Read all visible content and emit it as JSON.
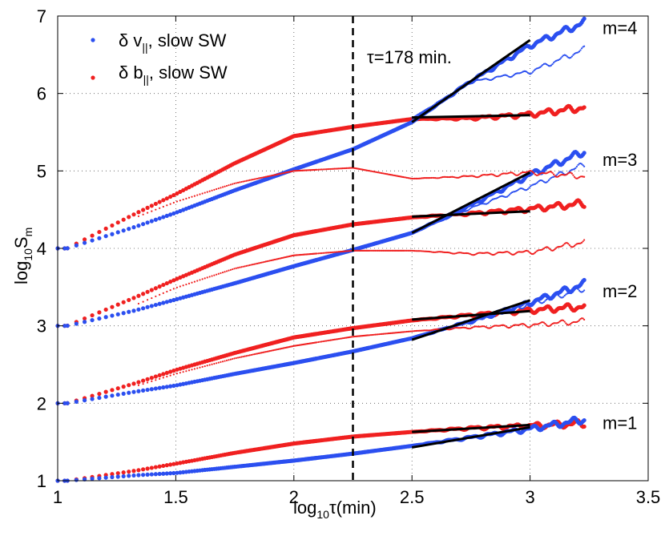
{
  "chart_data": {
    "type": "scatter",
    "title": "",
    "xlabel": {
      "pre": "log",
      "sub": "10",
      "post": "τ(min)"
    },
    "ylabel": {
      "pre": "log",
      "sub": "10",
      "mid": "S",
      "sub2": "m"
    },
    "xlim": [
      1,
      3.5
    ],
    "ylim": [
      1,
      7
    ],
    "xticks": [
      1,
      1.5,
      2,
      2.5,
      3,
      3.5
    ],
    "xtick_labels": [
      "1",
      "1.5",
      "2",
      "2.5",
      "3",
      "3.5"
    ],
    "yticks": [
      1,
      2,
      3,
      4,
      5,
      6,
      7
    ],
    "ytick_labels": [
      "1",
      "2",
      "3",
      "4",
      "5",
      "6",
      "7"
    ],
    "grid": "dotted",
    "legend": [
      {
        "name": "δ v||, slow SW",
        "label_pre": "δ v",
        "label_sub": "||",
        "label_post": ", slow SW",
        "color": "#2b4ff0"
      },
      {
        "name": "δ b||, slow SW",
        "label_pre": "δ b",
        "label_sub": "||",
        "label_post": ", slow SW",
        "color": "#f02020"
      }
    ],
    "legend_position": "top-left",
    "vline": {
      "x": 2.25,
      "style": "dashed",
      "label": "τ=178 min."
    },
    "x_last": 3.23,
    "orders": [
      {
        "m": 1,
        "label": "m=1",
        "label_y": 1.75,
        "v_anchor": [
          [
            1.04,
            1.0
          ],
          [
            1.33,
            1.07
          ],
          [
            1.5,
            1.1
          ],
          [
            1.75,
            1.18
          ],
          [
            2.0,
            1.26
          ],
          [
            2.25,
            1.35
          ],
          [
            2.5,
            1.45
          ],
          [
            2.75,
            1.56
          ],
          [
            3.0,
            1.67
          ],
          [
            3.23,
            1.79
          ]
        ],
        "b_anchor": [
          [
            1.04,
            1.0
          ],
          [
            1.33,
            1.13
          ],
          [
            1.5,
            1.22
          ],
          [
            1.75,
            1.36
          ],
          [
            2.0,
            1.48
          ],
          [
            2.25,
            1.57
          ],
          [
            2.5,
            1.63
          ],
          [
            2.75,
            1.68
          ],
          [
            3.0,
            1.71
          ],
          [
            3.23,
            1.74
          ]
        ],
        "v_fit": [
          [
            2.5,
            1.43
          ],
          [
            3.0,
            1.69
          ]
        ],
        "b_fit": [
          [
            2.5,
            1.63
          ],
          [
            3.0,
            1.72
          ]
        ]
      },
      {
        "m": 2,
        "label": "m=2",
        "label_y": 3.45,
        "v_anchor": [
          [
            1.04,
            2.0
          ],
          [
            1.33,
            2.15
          ],
          [
            1.5,
            2.23
          ],
          [
            1.75,
            2.38
          ],
          [
            2.0,
            2.52
          ],
          [
            2.25,
            2.67
          ],
          [
            2.5,
            2.84
          ],
          [
            2.75,
            3.06
          ],
          [
            3.0,
            3.3
          ],
          [
            3.23,
            3.54
          ]
        ],
        "b_anchor": [
          [
            1.04,
            2.0
          ],
          [
            1.33,
            2.26
          ],
          [
            1.5,
            2.43
          ],
          [
            1.75,
            2.65
          ],
          [
            2.0,
            2.85
          ],
          [
            2.25,
            2.97
          ],
          [
            2.5,
            3.07
          ],
          [
            2.75,
            3.14
          ],
          [
            3.0,
            3.2
          ],
          [
            3.23,
            3.25
          ]
        ],
        "v_thin": [
          [
            2.5,
            2.84
          ],
          [
            2.75,
            3.06
          ],
          [
            3.0,
            3.28
          ],
          [
            3.23,
            3.48
          ]
        ],
        "b_thin": [
          [
            1.33,
            2.22
          ],
          [
            1.5,
            2.38
          ],
          [
            1.75,
            2.58
          ],
          [
            2.0,
            2.74
          ],
          [
            2.25,
            2.86
          ],
          [
            2.5,
            2.93
          ],
          [
            2.75,
            2.98
          ],
          [
            3.0,
            3.01
          ],
          [
            3.23,
            3.06
          ]
        ],
        "v_fit": [
          [
            2.5,
            2.82
          ],
          [
            3.0,
            3.33
          ]
        ],
        "b_fit": [
          [
            2.5,
            3.08
          ],
          [
            3.0,
            3.19
          ]
        ]
      },
      {
        "m": 3,
        "label": "m=3",
        "label_y": 5.15,
        "v_anchor": [
          [
            1.04,
            3.0
          ],
          [
            1.33,
            3.2
          ],
          [
            1.5,
            3.34
          ],
          [
            1.75,
            3.55
          ],
          [
            2.0,
            3.77
          ],
          [
            2.25,
            3.98
          ],
          [
            2.5,
            4.2
          ],
          [
            2.75,
            4.56
          ],
          [
            3.0,
            4.95
          ],
          [
            3.23,
            5.25
          ]
        ],
        "b_anchor": [
          [
            1.04,
            3.0
          ],
          [
            1.33,
            3.37
          ],
          [
            1.5,
            3.6
          ],
          [
            1.75,
            3.92
          ],
          [
            2.0,
            4.17
          ],
          [
            2.25,
            4.31
          ],
          [
            2.5,
            4.4
          ],
          [
            2.75,
            4.45
          ],
          [
            3.0,
            4.51
          ],
          [
            3.23,
            4.58
          ]
        ],
        "v_thin": [
          [
            2.5,
            4.2
          ],
          [
            2.75,
            4.52
          ],
          [
            3.0,
            4.8
          ],
          [
            3.23,
            5.08
          ]
        ],
        "b_thin": [
          [
            1.33,
            3.27
          ],
          [
            1.5,
            3.49
          ],
          [
            1.75,
            3.74
          ],
          [
            2.0,
            3.91
          ],
          [
            2.25,
            3.97
          ],
          [
            2.5,
            3.97
          ],
          [
            2.75,
            3.93
          ],
          [
            3.0,
            3.95
          ],
          [
            3.23,
            4.08
          ]
        ],
        "v_fit": [
          [
            2.5,
            4.2
          ],
          [
            3.0,
            4.98
          ]
        ],
        "b_fit": [
          [
            2.5,
            4.41
          ],
          [
            3.0,
            4.48
          ]
        ]
      },
      {
        "m": 4,
        "label": "m=4",
        "label_y": 6.85,
        "v_anchor": [
          [
            1.04,
            4.0
          ],
          [
            1.33,
            4.28
          ],
          [
            1.5,
            4.46
          ],
          [
            1.75,
            4.75
          ],
          [
            2.0,
            5.02
          ],
          [
            2.25,
            5.28
          ],
          [
            2.5,
            5.63
          ],
          [
            2.75,
            6.16
          ],
          [
            3.0,
            6.62
          ],
          [
            3.23,
            6.92
          ]
        ],
        "b_anchor": [
          [
            1.04,
            4.0
          ],
          [
            1.33,
            4.45
          ],
          [
            1.5,
            4.7
          ],
          [
            1.75,
            5.1
          ],
          [
            2.0,
            5.45
          ],
          [
            2.25,
            5.57
          ],
          [
            2.5,
            5.67
          ],
          [
            2.75,
            5.68
          ],
          [
            3.0,
            5.73
          ],
          [
            3.23,
            5.82
          ]
        ],
        "v_thin": [
          [
            2.5,
            5.68
          ],
          [
            2.75,
            6.15
          ],
          [
            3.0,
            6.28
          ],
          [
            3.23,
            6.57
          ]
        ],
        "b_thin": [
          [
            1.33,
            4.4
          ],
          [
            1.5,
            4.6
          ],
          [
            1.75,
            4.84
          ],
          [
            2.0,
            5.0
          ],
          [
            2.25,
            5.04
          ],
          [
            2.5,
            4.9
          ],
          [
            2.75,
            4.93
          ],
          [
            3.0,
            4.98
          ],
          [
            3.23,
            4.93
          ]
        ],
        "v_fit": [
          [
            2.5,
            5.63
          ],
          [
            3.0,
            6.69
          ]
        ],
        "b_fit": [
          [
            2.5,
            5.69
          ],
          [
            3.0,
            5.72
          ]
        ]
      }
    ]
  }
}
